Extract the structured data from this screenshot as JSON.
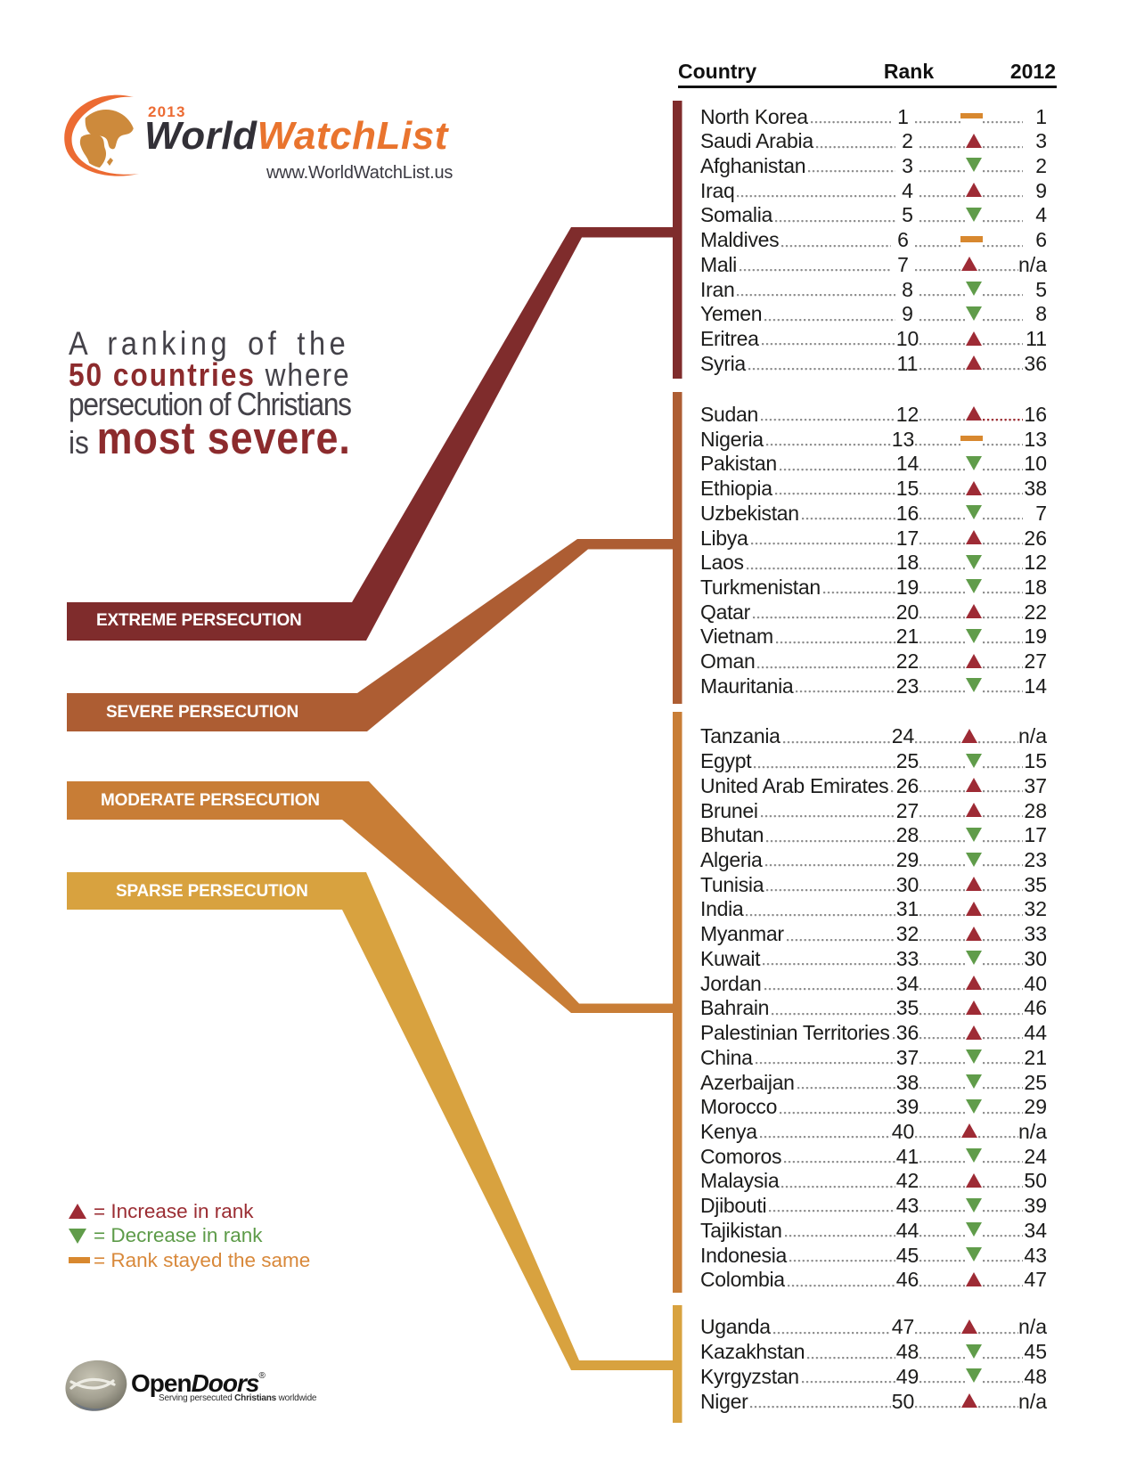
{
  "brand": {
    "year": "2013",
    "name_part1": "World",
    "name_part2": "WatchList",
    "url": "www.WorldWatchList.us"
  },
  "intro": {
    "line1": "A ranking of the",
    "line2_bold": "50 countries",
    "line2_rest": " where",
    "line3": "persecution of Christians",
    "line4_prefix": "is ",
    "line4_bold": "most severe."
  },
  "table_headers": {
    "country": "Country",
    "rank": "Rank",
    "prev_year": "2012"
  },
  "colors": {
    "extreme": "#7f2c2c",
    "severe": "#ad5d33",
    "moderate": "#c87d36",
    "sparse": "#d8a23f",
    "increase": "#9e2b35",
    "decrease": "#609c4a",
    "same": "#d8882f"
  },
  "groups": [
    {
      "label": "EXTREME PERSECUTION",
      "rows": [
        {
          "country": "North Korea",
          "rank": "1",
          "change": "same",
          "prev": "1"
        },
        {
          "country": "Saudi Arabia",
          "rank": "2",
          "change": "increase",
          "prev": "3"
        },
        {
          "country": "Afghanistan",
          "rank": "3",
          "change": "decrease",
          "prev": "2"
        },
        {
          "country": "Iraq",
          "rank": "4",
          "change": "increase",
          "prev": "9"
        },
        {
          "country": "Somalia",
          "rank": "5",
          "change": "decrease",
          "prev": "4"
        },
        {
          "country": "Maldives",
          "rank": "6",
          "change": "same",
          "prev": "6"
        },
        {
          "country": "Mali",
          "rank": "7",
          "change": "increase",
          "prev": "n/a"
        },
        {
          "country": "Iran",
          "rank": "8",
          "change": "decrease",
          "prev": "5"
        },
        {
          "country": "Yemen",
          "rank": "9",
          "change": "decrease",
          "prev": "8"
        },
        {
          "country": "Eritrea",
          "rank": "10",
          "change": "increase",
          "prev": "11"
        },
        {
          "country": "Syria",
          "rank": "11",
          "change": "increase",
          "prev": "36"
        }
      ]
    },
    {
      "label": "SEVERE PERSECUTION",
      "rows": [
        {
          "country": "Sudan",
          "rank": "12",
          "change": "increase",
          "prev": "16",
          "red_leader": true
        },
        {
          "country": "Nigeria",
          "rank": "13",
          "change": "same",
          "prev": "13"
        },
        {
          "country": "Pakistan",
          "rank": "14",
          "change": "decrease",
          "prev": "10"
        },
        {
          "country": "Ethiopia",
          "rank": "15",
          "change": "increase",
          "prev": "38"
        },
        {
          "country": "Uzbekistan",
          "rank": "16",
          "change": "decrease",
          "prev": "7"
        },
        {
          "country": "Libya",
          "rank": "17",
          "change": "increase",
          "prev": "26"
        },
        {
          "country": "Laos",
          "rank": "18",
          "change": "decrease",
          "prev": "12"
        },
        {
          "country": "Turkmenistan",
          "rank": "19",
          "change": "decrease",
          "prev": "18"
        },
        {
          "country": "Qatar",
          "rank": "20",
          "change": "increase",
          "prev": "22"
        },
        {
          "country": "Vietnam",
          "rank": "21",
          "change": "decrease",
          "prev": "19"
        },
        {
          "country": "Oman",
          "rank": "22",
          "change": "increase",
          "prev": "27"
        },
        {
          "country": "Mauritania",
          "rank": "23",
          "change": "decrease",
          "prev": "14"
        }
      ]
    },
    {
      "label": "MODERATE PERSECUTION",
      "rows": [
        {
          "country": "Tanzania",
          "rank": "24",
          "change": "increase",
          "prev": "n/a"
        },
        {
          "country": "Egypt",
          "rank": "25",
          "change": "decrease",
          "prev": "15"
        },
        {
          "country": "United Arab Emirates",
          "rank": "26",
          "change": "increase",
          "prev": "37"
        },
        {
          "country": "Brunei",
          "rank": "27",
          "change": "increase",
          "prev": "28"
        },
        {
          "country": "Bhutan",
          "rank": "28",
          "change": "decrease",
          "prev": "17"
        },
        {
          "country": "Algeria",
          "rank": "29",
          "change": "decrease",
          "prev": "23"
        },
        {
          "country": "Tunisia",
          "rank": "30",
          "change": "increase",
          "prev": "35"
        },
        {
          "country": "India",
          "rank": "31",
          "change": "increase",
          "prev": "32"
        },
        {
          "country": "Myanmar",
          "rank": "32",
          "change": "increase",
          "prev": "33"
        },
        {
          "country": "Kuwait",
          "rank": "33",
          "change": "decrease",
          "prev": "30"
        },
        {
          "country": "Jordan",
          "rank": "34",
          "change": "increase",
          "prev": "40"
        },
        {
          "country": "Bahrain",
          "rank": "35",
          "change": "increase",
          "prev": "46"
        },
        {
          "country": "Palestinian Territories",
          "rank": "36",
          "change": "increase",
          "prev": "44"
        },
        {
          "country": "China",
          "rank": "37",
          "change": "decrease",
          "prev": "21"
        },
        {
          "country": "Azerbaijan",
          "rank": "38",
          "change": "decrease",
          "prev": "25"
        },
        {
          "country": "Morocco",
          "rank": "39",
          "change": "decrease",
          "prev": "29"
        },
        {
          "country": "Kenya",
          "rank": "40",
          "change": "increase",
          "prev": "n/a"
        },
        {
          "country": "Comoros",
          "rank": "41",
          "change": "decrease",
          "prev": "24"
        },
        {
          "country": "Malaysia",
          "rank": "42",
          "change": "increase",
          "prev": "50"
        },
        {
          "country": "Djibouti",
          "rank": "43",
          "change": "decrease",
          "prev": "39"
        },
        {
          "country": "Tajikistan",
          "rank": "44",
          "change": "decrease",
          "prev": "34"
        },
        {
          "country": "Indonesia",
          "rank": "45",
          "change": "decrease",
          "prev": "43"
        },
        {
          "country": "Colombia",
          "rank": "46",
          "change": "increase",
          "prev": "47"
        }
      ]
    },
    {
      "label": "SPARSE PERSECUTION",
      "rows": [
        {
          "country": "Uganda",
          "rank": "47",
          "change": "increase",
          "prev": "n/a"
        },
        {
          "country": "Kazakhstan",
          "rank": "48",
          "change": "decrease",
          "prev": "45"
        },
        {
          "country": "Kyrgyzstan",
          "rank": "49",
          "change": "decrease",
          "prev": "48"
        },
        {
          "country": "Niger",
          "rank": "50",
          "change": "increase",
          "prev": "n/a"
        }
      ]
    }
  ],
  "legend": [
    {
      "symbol": "increase",
      "label": "= Increase in rank"
    },
    {
      "symbol": "decrease",
      "label": "= Decrease in rank"
    },
    {
      "symbol": "same",
      "label": "= Rank stayed the same"
    }
  ],
  "footer": {
    "logo_part1": "Open",
    "logo_part2": "Doors",
    "reg": "®",
    "tagline_pre": "Serving persecuted ",
    "tagline_bold": "Christians",
    "tagline_post": " worldwide"
  }
}
